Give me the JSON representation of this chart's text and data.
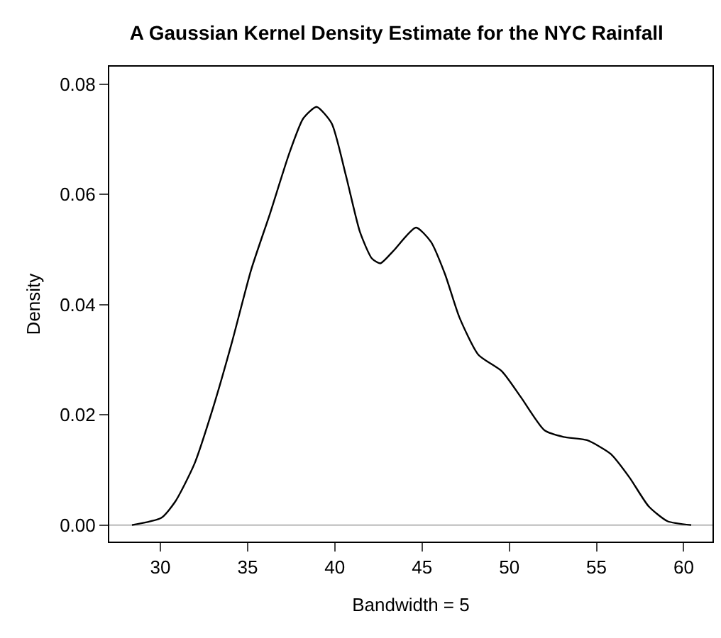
{
  "chart_data": {
    "type": "line",
    "title": "A Gaussian Kernel Density Estimate for the NYC Rainfall",
    "xlabel": "Bandwidth = 5",
    "ylabel": "Density",
    "x": [
      28.37,
      30.05,
      30.86,
      31.95,
      33.03,
      34.12,
      35.2,
      36.29,
      37.37,
      38.19,
      38.95,
      39.82,
      40.63,
      41.44,
      42.12,
      42.61,
      43.34,
      44.65,
      45.51,
      46.32,
      47.14,
      48.23,
      49.58,
      50.67,
      52.02,
      53.11,
      54.46,
      55.82,
      56.9,
      57.99,
      59.07,
      60.43
    ],
    "series": [
      {
        "color": "#000000",
        "values": [
          0.0,
          0.0013,
          0.0043,
          0.0111,
          0.0214,
          0.0334,
          0.0463,
          0.0566,
          0.0673,
          0.0738,
          0.0759,
          0.0729,
          0.0635,
          0.0532,
          0.0484,
          0.0475,
          0.0497,
          0.054,
          0.0514,
          0.0455,
          0.0377,
          0.0309,
          0.0279,
          0.0232,
          0.0172,
          0.016,
          0.0154,
          0.0129,
          0.0086,
          0.0034,
          0.0007,
          0.0
        ]
      }
    ],
    "xlim": [
      27.07,
      61.65
    ],
    "ylim": [
      -0.003,
      0.0832
    ],
    "xticks": [
      30,
      35,
      40,
      45,
      50,
      55,
      60
    ],
    "yticks": [
      {
        "value": 0,
        "label": "0.00"
      },
      {
        "value": 0.02,
        "label": "0.02"
      },
      {
        "value": 0.04,
        "label": "0.04"
      },
      {
        "value": 0.06,
        "label": "0.06"
      },
      {
        "value": 0.08,
        "label": "0.08"
      }
    ],
    "ref_lines": [
      {
        "axis": "y",
        "value": 0,
        "color": "#c8c8c8"
      }
    ],
    "grid": false,
    "legend": false,
    "marker": "none",
    "line_style": "solid"
  }
}
